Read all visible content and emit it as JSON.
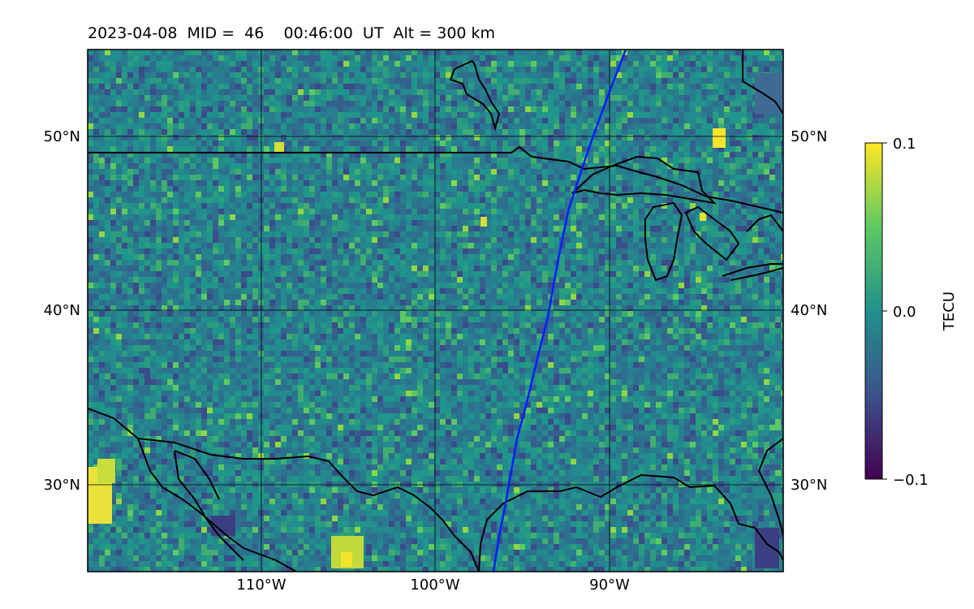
{
  "title": "2023-04-08  MID =  46    00:46:00  UT  Alt = 300 km",
  "map": {
    "lon_range": [
      -119,
      -79
    ],
    "lat_range": [
      25,
      55
    ],
    "grid_lons": [
      -110,
      -100,
      -90
    ],
    "grid_lats": [
      30,
      40,
      50
    ],
    "lon_tick_labels": [
      "110°W",
      "100°W",
      "90°W"
    ],
    "lat_tick_labels": [
      "30°N",
      "40°N",
      "50°N"
    ],
    "field_description": "TEC perturbation (viridis colormap)",
    "gridlines": true
  },
  "colorbar": {
    "label": "TECU",
    "min": -0.1,
    "max": 0.1,
    "tick_labels": [
      "0.1",
      "0.0",
      "−0.1"
    ],
    "colormap": [
      "#440154",
      "#3b528b",
      "#21918c",
      "#5ec962",
      "#fde725"
    ]
  },
  "track_color": "#0a1eff"
}
